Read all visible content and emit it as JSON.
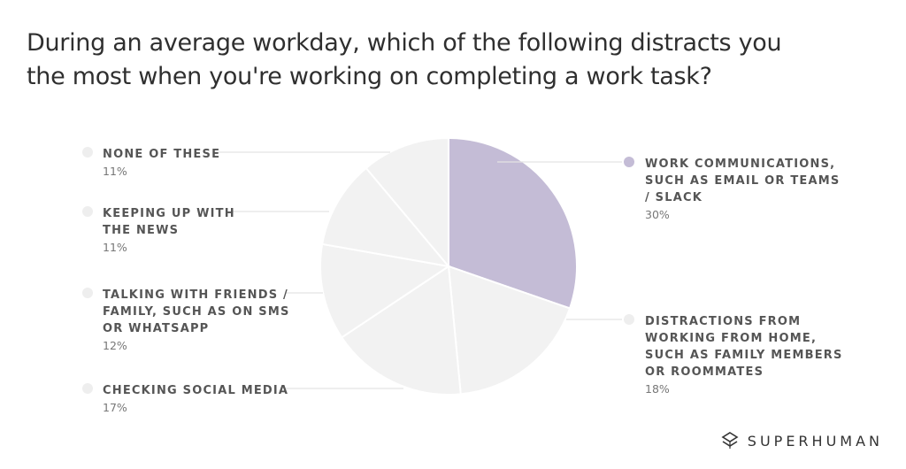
{
  "title": {
    "line1": "During an average workday, which of the following distracts you",
    "line2": "the most when you're working on completing a work task?"
  },
  "chart_data": {
    "type": "pie",
    "title": "During an average workday, which of the following distracts you the most when you're working on completing a work task?",
    "slices": [
      {
        "label_lines": [
          "WORK COMMUNICATIONS,",
          "SUCH AS EMAIL OR TEAMS",
          "/ SLACK"
        ],
        "value": 30,
        "pct_label": "30%",
        "color": "#c4bcd6"
      },
      {
        "label_lines": [
          "DISTRACTIONS FROM",
          "WORKING FROM HOME,",
          "SUCH AS FAMILY MEMBERS",
          "OR ROOMMATES"
        ],
        "value": 18,
        "pct_label": "18%",
        "color": "#f2f2f2"
      },
      {
        "label_lines": [
          "CHECKING SOCIAL MEDIA"
        ],
        "value": 17,
        "pct_label": "17%",
        "color": "#f2f2f2"
      },
      {
        "label_lines": [
          "TALKING WITH FRIENDS /",
          "FAMILY, SUCH AS ON SMS",
          "OR WHATSAPP"
        ],
        "value": 12,
        "pct_label": "12%",
        "color": "#f2f2f2"
      },
      {
        "label_lines": [
          "KEEPING UP WITH",
          "THE NEWS"
        ],
        "value": 11,
        "pct_label": "11%",
        "color": "#f2f2f2"
      },
      {
        "label_lines": [
          "NONE OF THESE"
        ],
        "value": 11,
        "pct_label": "11%",
        "color": "#f2f2f2"
      }
    ],
    "highlight_color": "#c4bcd6",
    "muted_color": "#f2f2f2",
    "slice_border_color": "#ffffff",
    "leader_color": "#e3e3e3"
  },
  "brand": {
    "name": "SUPERHUMAN",
    "icon": "superhuman-logo-icon"
  }
}
